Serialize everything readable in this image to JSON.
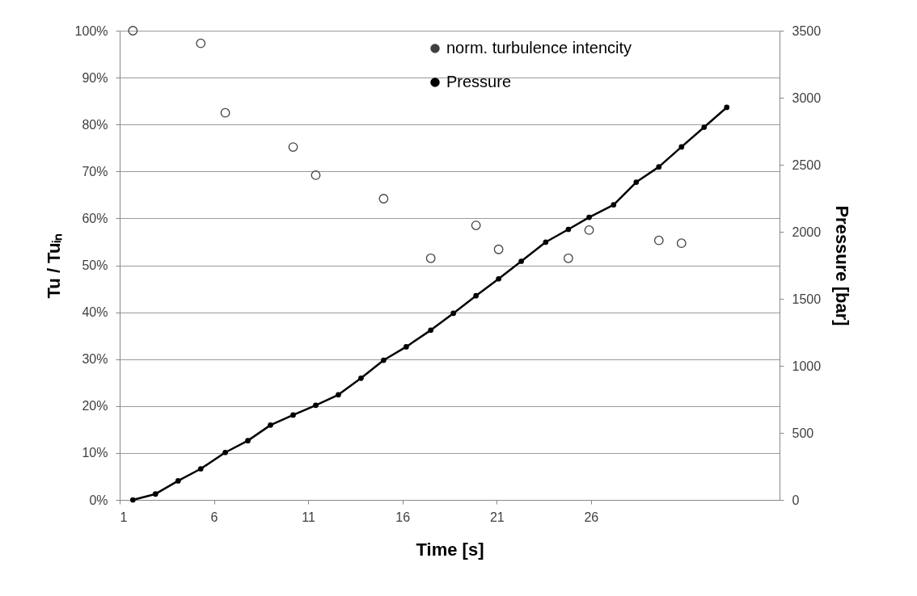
{
  "chart_data": {
    "type": "scatter",
    "xlabel": "Time [s]",
    "ylabel": "Tu / Tuᵢₙ",
    "y2label": "Pressure [bar]",
    "xlim": [
      1,
      36
    ],
    "xticks": [
      1,
      6,
      11,
      16,
      21,
      26
    ],
    "ylim": [
      0,
      100
    ],
    "yticks": [
      {
        "value": 0,
        "label": "0%"
      },
      {
        "value": 10,
        "label": "10%"
      },
      {
        "value": 20,
        "label": "20%"
      },
      {
        "value": 30,
        "label": "30%"
      },
      {
        "value": 40,
        "label": "40%"
      },
      {
        "value": 50,
        "label": "50%"
      },
      {
        "value": 60,
        "label": "60%"
      },
      {
        "value": 70,
        "label": "70%"
      },
      {
        "value": 80,
        "label": "80%"
      },
      {
        "value": 90,
        "label": "90%"
      },
      {
        "value": 100,
        "label": "100%"
      }
    ],
    "y2lim": [
      0,
      3500
    ],
    "y2ticks": [
      0,
      500,
      1000,
      1500,
      2000,
      2500,
      3000,
      3500
    ],
    "grid": "y",
    "legend": "top right",
    "marker": "circle",
    "series": [
      {
        "name": "norm. turbulence intencity",
        "color": "#404040",
        "x": [
          1.7,
          5.3,
          6.6,
          10.2,
          11.4,
          15.0,
          17.5,
          19.9,
          21.1,
          24.8,
          25.9,
          29.6,
          30.8
        ],
        "values": [
          100,
          97.3,
          82.5,
          75.2,
          69.2,
          64.2,
          51.5,
          58.5,
          53.4,
          51.5,
          57.5,
          55.3,
          54.7
        ]
      },
      {
        "name": "Pressure",
        "type": "line",
        "axis": "y2",
        "color": "#000000",
        "x": [
          1.7,
          2.9,
          4.1,
          5.3,
          6.6,
          7.8,
          9.0,
          10.2,
          11.4,
          12.6,
          13.8,
          15.0,
          16.2,
          17.5,
          18.7,
          19.9,
          21.1,
          22.3,
          23.6,
          24.8,
          25.9,
          27.2,
          28.4,
          29.6,
          30.8,
          32.0,
          33.2
        ],
        "values": [
          0,
          44,
          142,
          232,
          354,
          442,
          558,
          633,
          706,
          784,
          908,
          1042,
          1142,
          1266,
          1392,
          1523,
          1649,
          1780,
          1923,
          2018,
          2108,
          2201,
          2370,
          2484,
          2633,
          2780,
          2928
        ]
      }
    ]
  }
}
